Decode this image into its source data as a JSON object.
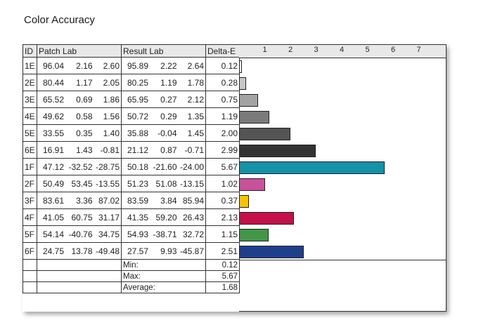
{
  "title": "Color Accuracy",
  "columns": {
    "id": "ID",
    "patch": "Patch Lab",
    "result": "Result Lab",
    "delta": "Delta-E"
  },
  "rows": [
    {
      "id": "1E",
      "patch": [
        "96.04",
        "2.16",
        "2.60"
      ],
      "result": [
        "95.89",
        "2.22",
        "2.64"
      ],
      "delta": "0.12",
      "color": "#ffffff"
    },
    {
      "id": "2E",
      "patch": [
        "80.44",
        "1.17",
        "2.05"
      ],
      "result": [
        "80.25",
        "1.19",
        "1.78"
      ],
      "delta": "0.28",
      "color": "#c8c8c8"
    },
    {
      "id": "3E",
      "patch": [
        "65.52",
        "0.69",
        "1.86"
      ],
      "result": [
        "65.95",
        "0.27",
        "2.12"
      ],
      "delta": "0.75",
      "color": "#a3a3a3"
    },
    {
      "id": "4E",
      "patch": [
        "49.62",
        "0.58",
        "1.56"
      ],
      "result": [
        "50.72",
        "0.29",
        "1.35"
      ],
      "delta": "1.19",
      "color": "#7b7b7b"
    },
    {
      "id": "5E",
      "patch": [
        "33.55",
        "0.35",
        "1.40"
      ],
      "result": [
        "35.88",
        "-0.04",
        "1.45"
      ],
      "delta": "2.00",
      "color": "#545454"
    },
    {
      "id": "6E",
      "patch": [
        "16.91",
        "1.43",
        "-0.81"
      ],
      "result": [
        "21.12",
        "0.87",
        "-0.71"
      ],
      "delta": "2.99",
      "color": "#333333"
    },
    {
      "id": "1F",
      "patch": [
        "47.12",
        "-32.52",
        "-28.75"
      ],
      "result": [
        "50.18",
        "-21.60",
        "-24.00"
      ],
      "delta": "5.67",
      "color": "#1591a8"
    },
    {
      "id": "2F",
      "patch": [
        "50.49",
        "53.45",
        "-13.55"
      ],
      "result": [
        "51.23",
        "51.08",
        "-13.15"
      ],
      "delta": "1.02",
      "color": "#c7519a"
    },
    {
      "id": "3F",
      "patch": [
        "83.61",
        "3.36",
        "87.02"
      ],
      "result": [
        "83.59",
        "3.84",
        "85.94"
      ],
      "delta": "0.37",
      "color": "#f5c400"
    },
    {
      "id": "4F",
      "patch": [
        "41.05",
        "60.75",
        "31.17"
      ],
      "result": [
        "41.35",
        "59.20",
        "26.43"
      ],
      "delta": "2.13",
      "color": "#c5104a"
    },
    {
      "id": "5F",
      "patch": [
        "54.14",
        "-40.76",
        "34.75"
      ],
      "result": [
        "54.93",
        "-38.71",
        "32.72"
      ],
      "delta": "1.15",
      "color": "#429747"
    },
    {
      "id": "6F",
      "patch": [
        "24.75",
        "13.78",
        "-49.48"
      ],
      "result": [
        "27.57",
        "9.93",
        "-45.87"
      ],
      "delta": "2.51",
      "color": "#1e3f8c"
    }
  ],
  "summary": [
    {
      "label": "Min:",
      "value": "0.12"
    },
    {
      "label": "Max:",
      "value": "5.67"
    },
    {
      "label": "Average:",
      "value": "1.68"
    }
  ],
  "chart_data": {
    "type": "bar",
    "orientation": "horizontal",
    "categories": [
      "1E",
      "2E",
      "3E",
      "4E",
      "5E",
      "6E",
      "1F",
      "2F",
      "3F",
      "4F",
      "5F",
      "6F"
    ],
    "values": [
      0.12,
      0.28,
      0.75,
      1.19,
      2.0,
      2.99,
      5.67,
      1.02,
      0.37,
      2.13,
      1.15,
      2.51
    ],
    "xlim": [
      0,
      8
    ],
    "ticks": [
      "1",
      "2",
      "3",
      "4",
      "5",
      "6",
      "7"
    ],
    "grid": false
  }
}
